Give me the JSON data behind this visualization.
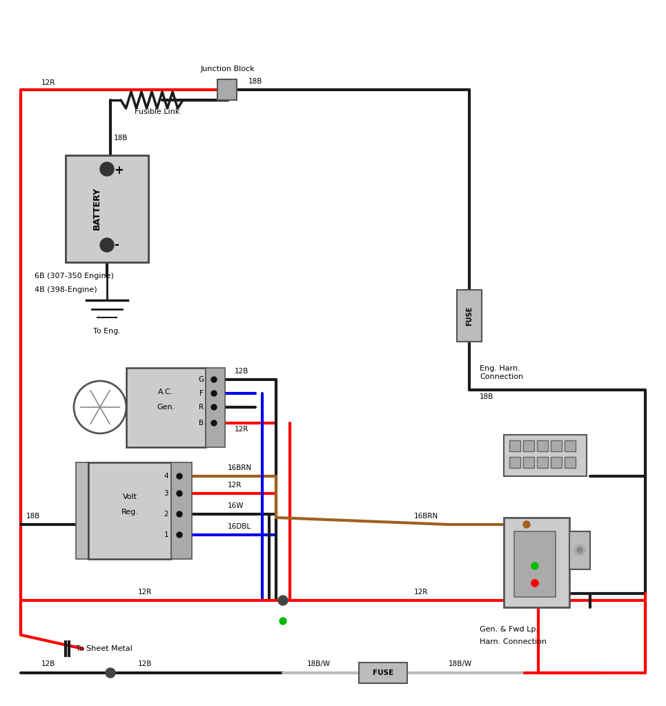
{
  "bg_color": "#ffffff",
  "wire_colors": {
    "red": "#ff0000",
    "black": "#1a1a1a",
    "blue": "#0000ee",
    "brown": "#a06020",
    "gray_wire": "#bbbbbb"
  },
  "labels": {
    "junction_block": "Junction Block",
    "fusible_link": "Fusible Link",
    "battery": "BATTERY",
    "battery_note1": "6B (307-350 Engine)",
    "battery_note2": "4B (398-Engine)",
    "to_eng": "To Eng.",
    "eng_harn": "Eng. Harn.\nConnection",
    "gen_fwd_line1": "Gen. & Fwd Lp.",
    "gen_fwd_line2": "Harn. Connection",
    "to_sheet_metal": "To Sheet Metal",
    "fuse": "FUSE",
    "ac_gen_line1": "A.C.",
    "ac_gen_line2": "Gen.",
    "volt_line1": "Volt",
    "volt_line2": "Reg.",
    "wire_12R": "12R",
    "wire_18B": "18B",
    "wire_12B": "12B",
    "wire_16BRN": "16BRN",
    "wire_12R2": "12R",
    "wire_16W": "16W",
    "wire_16DBL": "16DBL",
    "wire_18BW": "18B/W"
  },
  "font_sizes": {
    "label": 8,
    "wire": 7.5,
    "component": 8,
    "title_block": 7
  }
}
